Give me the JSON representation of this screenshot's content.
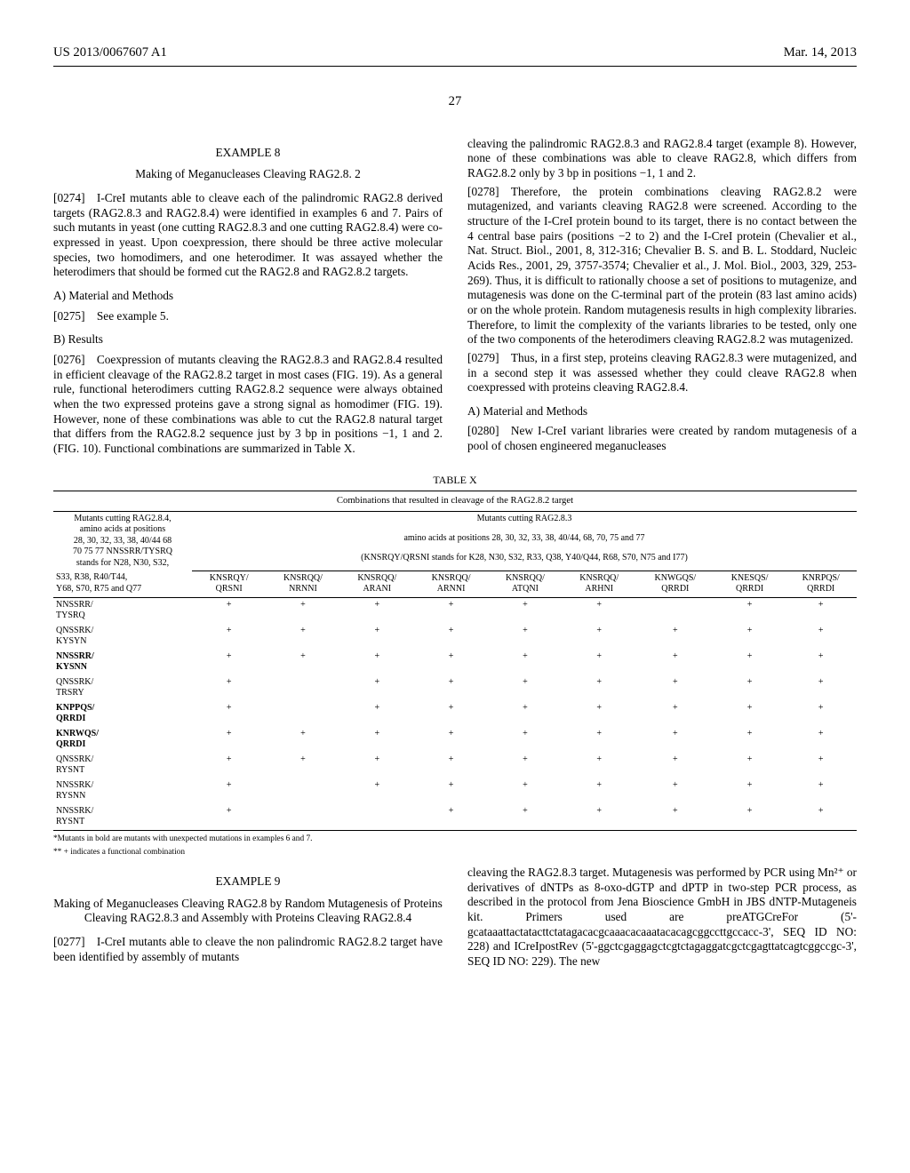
{
  "header": {
    "left": "US 2013/0067607 A1",
    "right": "Mar. 14, 2013"
  },
  "page_number": "27",
  "col1": {
    "ex8_label": "EXAMPLE 8",
    "ex8_title": "Making of Meganucleases Cleaving RAG2.8. 2",
    "p0274": "[0274] I-CreI mutants able to cleave each of the palindromic RAG2.8 derived targets (RAG2.8.3 and RAG2.8.4) were identified in examples 6 and 7. Pairs of such mutants in yeast (one cutting RAG2.8.3 and one cutting RAG2.8.4) were co-expressed in yeast. Upon coexpression, there should be three active molecular species, two homodimers, and one heterodimer. It was assayed whether the heterodimers that should be formed cut the RAG2.8 and RAG2.8.2 targets.",
    "secA": "A) Material and Methods",
    "p0275": "[0275] See example 5.",
    "secB": "B) Results",
    "p0276": "[0276] Coexpression of mutants cleaving the RAG2.8.3 and RAG2.8.4 resulted in efficient cleavage of the RAG2.8.2 target in most cases (FIG. 19). As a general rule, functional heterodimers cutting RAG2.8.2 sequence were always obtained when the two expressed proteins gave a strong signal as homodimer (FIG. 19). However, none of these combinations was able to cut the RAG2.8 natural target that differs from the RAG2.8.2 sequence just by 3 bp in positions −1, 1 and 2. (FIG. 10). Functional combinations are summarized in Table X."
  },
  "col2": {
    "p_cont": "cleaving the palindromic RAG2.8.3 and RAG2.8.4 target (example 8). However, none of these combinations was able to cleave RAG2.8, which differs from RAG2.8.2 only by 3 bp in positions −1, 1 and 2.",
    "p0278": "[0278] Therefore, the protein combinations cleaving RAG2.8.2 were mutagenized, and variants cleaving RAG2.8 were screened. According to the structure of the I-CreI protein bound to its target, there is no contact between the 4 central base pairs (positions −2 to 2) and the I-CreI protein (Chevalier et al., Nat. Struct. Biol., 2001, 8, 312-316; Chevalier B. S. and B. L. Stoddard, Nucleic Acids Res., 2001, 29, 3757-3574; Chevalier et al., J. Mol. Biol., 2003, 329, 253-269). Thus, it is difficult to rationally choose a set of positions to mutagenize, and mutagenesis was done on the C-terminal part of the protein (83 last amino acids) or on the whole protein. Random mutagenesis results in high complexity libraries. Therefore, to limit the complexity of the variants libraries to be tested, only one of the two components of the heterodimers cleaving RAG2.8.2 was mutagenized.",
    "p0279": "[0279] Thus, in a first step, proteins cleaving RAG2.8.3 were mutagenized, and in a second step it was assessed whether they could cleave RAG2.8 when coexpressed with proteins cleaving RAG2.8.4.",
    "secA": "A) Material and Methods",
    "p0280": "[0280] New I-CreI variant libraries were created by random mutagenesis of a pool of chosen engineered meganucleases"
  },
  "table": {
    "caption": "TABLE X",
    "title": "Combinations that resulted in cleavage of the RAG2.8.2 target",
    "headerLeft1": "Mutants cutting RAG2.8.4,",
    "headerLeft2": "amino acids at positions",
    "headerLeft3": "28, 30, 32, 33, 38, 40/44 68",
    "headerLeft4": "70 75 77 NNSSRR/TYSRQ",
    "headerLeft5": "stands for N28, N30, S32,",
    "headerRight1": "Mutants cutting RAG2.8.3",
    "headerRight2": "amino acids at positions 28, 30, 32, 33, 38, 40/44, 68, 70, 75 and 77",
    "headerRight3": "(KNSRQY/QRSNI stands for K28, N30, S32, R33, Q38, Y40/Q44, R68, S70, N75 and I77)",
    "subHeadLeft1": "S33, R38, R40/T44,",
    "subHeadLeft2": "Y68, S70, R75 and Q77",
    "cols": [
      "KNSRQY/\nQRSNI",
      "KNSRQQ/\nNRNNI",
      "KNSRQQ/\nARANI",
      "KNSRQQ/\nARNNI",
      "KNSRQQ/\nATQNI",
      "KNSRQQ/\nARHNI",
      "KNWGQS/\nQRRDI",
      "KNESQS/\nQRRDI",
      "KNRPQS/\nQRRDI"
    ],
    "rows": [
      {
        "label": "NNSSRR/\nTYSRQ",
        "bold": false,
        "vals": [
          "+",
          "+",
          "+",
          "+",
          "+",
          "+",
          "",
          "+",
          "+"
        ]
      },
      {
        "label": "QNSSRK/\nKYSYN",
        "bold": false,
        "vals": [
          "+",
          "+",
          "+",
          "+",
          "+",
          "+",
          "+",
          "+",
          "+"
        ]
      },
      {
        "label": "NNSSRR/\nKYSNN",
        "bold": true,
        "vals": [
          "+",
          "+",
          "+",
          "+",
          "+",
          "+",
          "+",
          "+",
          "+"
        ]
      },
      {
        "label": "QNSSRK/\nTRSRY",
        "bold": false,
        "vals": [
          "+",
          "",
          "+",
          "+",
          "+",
          "+",
          "+",
          "+",
          "+"
        ]
      },
      {
        "label": "KNPPQS/\nQRRDI",
        "bold": true,
        "vals": [
          "+",
          "",
          "+",
          "+",
          "+",
          "+",
          "+",
          "+",
          "+"
        ]
      },
      {
        "label": "KNRWQS/\nQRRDI",
        "bold": true,
        "vals": [
          "+",
          "+",
          "+",
          "+",
          "+",
          "+",
          "+",
          "+",
          "+"
        ]
      },
      {
        "label": "QNSSRK/\nRYSNT",
        "bold": false,
        "vals": [
          "+",
          "+",
          "+",
          "+",
          "+",
          "+",
          "+",
          "+",
          "+"
        ]
      },
      {
        "label": "NNSSRK/\nRYSNN",
        "bold": false,
        "vals": [
          "+",
          "",
          "+",
          "+",
          "+",
          "+",
          "+",
          "+",
          "+"
        ]
      },
      {
        "label": "NNSSRK/\nRYSNT",
        "bold": false,
        "vals": [
          "+",
          "",
          "",
          "+",
          "+",
          "+",
          "+",
          "+",
          "+"
        ]
      }
    ],
    "footnote1": "*Mutants in bold are mutants with unexpected mutations in examples 6 and 7.",
    "footnote2": "** + indicates a functional combination"
  },
  "col1b": {
    "ex9_label": "EXAMPLE 9",
    "ex9_title": "Making of Meganucleases Cleaving RAG2.8 by Random Mutagenesis of Proteins Cleaving RAG2.8.3 and Assembly with Proteins Cleaving RAG2.8.4",
    "p0277": "[0277] I-CreI mutants able to cleave the non palindromic RAG2.8.2 target have been identified by assembly of mutants"
  },
  "col2b": {
    "p_cont": "cleaving the RAG2.8.3 target. Mutagenesis was performed by PCR using Mn²⁺ or derivatives of dNTPs as 8-oxo-dGTP and dPTP in two-step PCR process, as described in the protocol from Jena Bioscience GmbH in JBS dNTP-Mutageneis kit. Primers used are preATGCreFor (5'-gcataaattactatacttctatagacacgcaaacacaaatacacagcggccttgccacc-3', SEQ ID NO: 228) and ICreIpostRev (5'-ggctcgaggagctcgtctagaggatcgctcgagttatcagtcggccgc-3', SEQ ID NO: 229). The new"
  }
}
